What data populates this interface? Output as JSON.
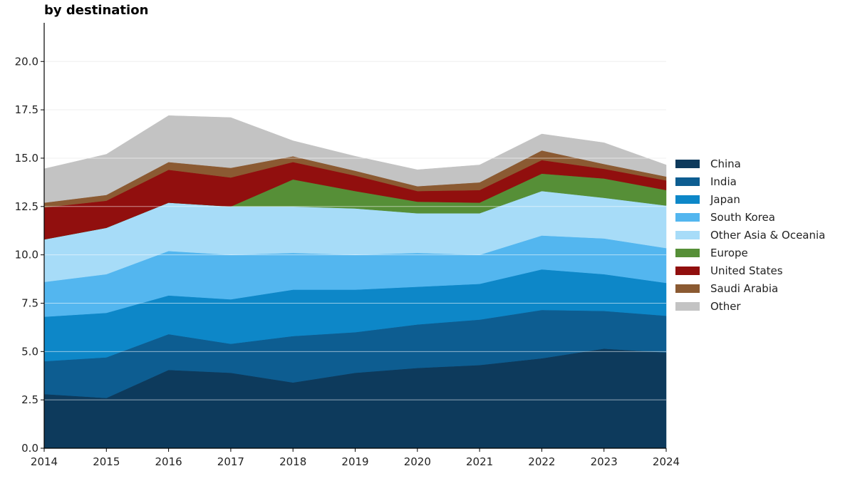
{
  "chart_data": {
    "type": "area",
    "stacked": true,
    "title": "by destination",
    "xlabel": "",
    "ylabel": "",
    "x": [
      2014,
      2015,
      2016,
      2017,
      2018,
      2019,
      2020,
      2021,
      2022,
      2023,
      2024
    ],
    "xlim": [
      2014,
      2024
    ],
    "ylim": [
      0,
      22
    ],
    "yticks": [
      "0.0",
      "2.5",
      "5.0",
      "7.5",
      "10.0",
      "12.5",
      "15.0",
      "17.5",
      "20.0"
    ],
    "xticks": [
      "2014",
      "2015",
      "2016",
      "2017",
      "2018",
      "2019",
      "2020",
      "2021",
      "2022",
      "2023",
      "2024"
    ],
    "grid": "horizontal",
    "legend_position": "right",
    "series": [
      {
        "name": "China",
        "color": "#0d3a5c",
        "values": [
          2.8,
          2.6,
          4.05,
          3.9,
          3.4,
          3.9,
          4.15,
          4.3,
          4.65,
          5.15,
          4.95
        ]
      },
      {
        "name": "India",
        "color": "#0d5d91",
        "values": [
          1.7,
          2.1,
          1.85,
          1.5,
          2.4,
          2.1,
          2.25,
          2.35,
          2.5,
          1.95,
          1.9
        ]
      },
      {
        "name": "Japan",
        "color": "#0d87c8",
        "values": [
          2.3,
          2.3,
          2.0,
          2.3,
          2.4,
          2.2,
          1.95,
          1.85,
          2.1,
          1.9,
          1.7
        ]
      },
      {
        "name": "South Korea",
        "color": "#53b6ef",
        "values": [
          1.8,
          2.0,
          2.3,
          2.3,
          1.9,
          1.8,
          1.75,
          1.5,
          1.75,
          1.85,
          1.8
        ]
      },
      {
        "name": "Other Asia & Oceania",
        "color": "#a7dcf8",
        "values": [
          2.2,
          2.4,
          2.5,
          2.5,
          2.4,
          2.4,
          2.05,
          2.15,
          2.3,
          2.1,
          2.2
        ]
      },
      {
        "name": "Europe",
        "color": "#568f37",
        "values": [
          0,
          0,
          0,
          0,
          1.4,
          0.9,
          0.6,
          0.55,
          0.9,
          1.0,
          0.8
        ]
      },
      {
        "name": "United States",
        "color": "#910f0e",
        "values": [
          1.65,
          1.4,
          1.7,
          1.5,
          0.9,
          0.8,
          0.55,
          0.65,
          0.7,
          0.5,
          0.5
        ]
      },
      {
        "name": "Saudi Arabia",
        "color": "#8b5a32",
        "values": [
          0.25,
          0.3,
          0.4,
          0.5,
          0.3,
          0.25,
          0.25,
          0.4,
          0.5,
          0.25,
          0.2
        ]
      },
      {
        "name": "Other",
        "color": "#c3c3c3",
        "values": [
          1.75,
          2.1,
          2.4,
          2.6,
          0.8,
          0.75,
          0.85,
          0.9,
          0.85,
          1.1,
          0.6
        ]
      }
    ]
  }
}
